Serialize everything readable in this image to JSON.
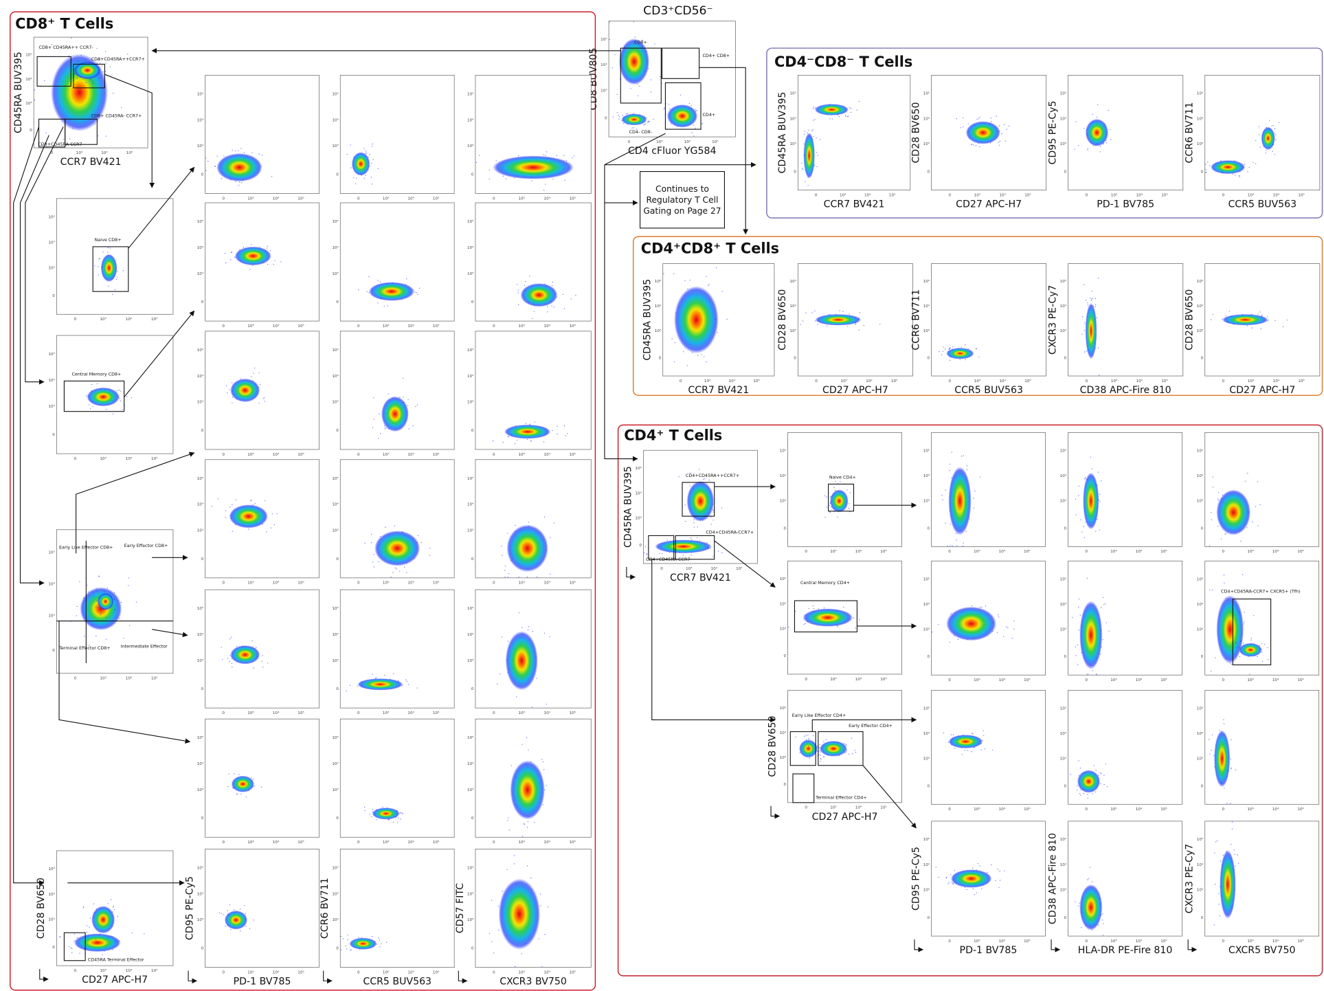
{
  "ticks": [
    "0",
    "10³",
    "10⁴",
    "10⁵"
  ],
  "cd3": {
    "title": "CD3⁺CD56⁻",
    "ylabel": "CD8 BUV805",
    "xlabel": "CD4 cFluor YG584",
    "gates": [
      "CD8+",
      "CD4+ CD8+",
      "CD4+",
      "CD4- CD8-"
    ],
    "note": [
      "Continues to",
      "Regulatory T Cell",
      "Gating on Page 27"
    ]
  },
  "cd8": {
    "title": "CD8⁺ T Cells",
    "first": {
      "ylabel": "CD45RA BUV395",
      "xlabel": "CCR7 BV421",
      "gates": [
        "CD8+ CD45RA++ CCR7-",
        "CD8+CD45RA++CCR7+",
        "CD8+ CD45RA- CCR7+",
        "CD8+CD45RA-CCR7-"
      ]
    },
    "naive": "Naive CD8+",
    "central_memory": "Central Memory CD8+",
    "effector": [
      "Early Like Effector CD8+",
      "Early Effector CD8+",
      "Terminal Effector CD8+",
      "Intermediate Effector"
    ],
    "terminal": {
      "ylabel": "CD28 BV650",
      "xlabel": "CD27 APC-H7",
      "gate": "CD45RA Terminal Effector"
    },
    "columns": [
      {
        "ylabel": "CD95 PE-Cy5",
        "xlabel": "PD-1 BV785"
      },
      {
        "ylabel": "CCR6 BV711",
        "xlabel": "CCR5 BUV563"
      },
      {
        "ylabel": "CD57 FITC",
        "xlabel": "CXCR3 BV750"
      }
    ]
  },
  "dn": {
    "title": "CD4⁻CD8⁻ T Cells",
    "plots": [
      {
        "ylabel": "CD45RA BUV395",
        "xlabel": "CCR7 BV421"
      },
      {
        "ylabel": "CD28 BV650",
        "xlabel": "CD27 APC-H7"
      },
      {
        "ylabel": "CD95 PE-Cy5",
        "xlabel": "PD-1 BV785"
      },
      {
        "ylabel": "CCR6 BV711",
        "xlabel": "CCR5 BUV563"
      }
    ]
  },
  "dp": {
    "title": "CD4⁺CD8⁺ T Cells",
    "plots": [
      {
        "ylabel": "CD45RA BUV395",
        "xlabel": "CCR7 BV421"
      },
      {
        "ylabel": "CD28 BV650",
        "xlabel": "CD27 APC-H7"
      },
      {
        "ylabel": "CCR6 BV711",
        "xlabel": "CCR5 BUV563"
      },
      {
        "ylabel": "CXCR3 PE-Cy7",
        "xlabel": "CD38 APC-Fire 810"
      },
      {
        "ylabel": "CD28 BV650",
        "xlabel": "CD27 APC-H7"
      }
    ]
  },
  "cd4": {
    "title": "CD4⁺ T Cells",
    "first": {
      "ylabel": "CD45RA BUV395",
      "xlabel": "CCR7 BV421",
      "gates": [
        "CD4+CD45RA++CCR7+",
        "CD4+CD45RA-CCR7+",
        "CD4+CD45RA-CCR7-"
      ]
    },
    "naive": "Naive CD4+",
    "central_memory": "Central Memory CD4+",
    "effector": {
      "ylabel": "CD28 BV650",
      "xlabel": "CD27 APC-H7",
      "gates": [
        "Early Like Effector CD4+",
        "Early Effector CD4+",
        "Terminal Effector CD4+"
      ]
    },
    "tfh": "CD4+CD45RA-CCR7+ CXCR5+ (Tfh)",
    "columns": [
      {
        "ylabel": "CD95 PE-Cy5",
        "xlabel": "PD-1 BV785"
      },
      {
        "ylabel": "CD38 APC-Fire 810",
        "xlabel": "HLA-DR PE-Fire 810"
      },
      {
        "ylabel": "CXCR3 PE-Cy7",
        "xlabel": "CXCR5 BV750"
      }
    ]
  }
}
